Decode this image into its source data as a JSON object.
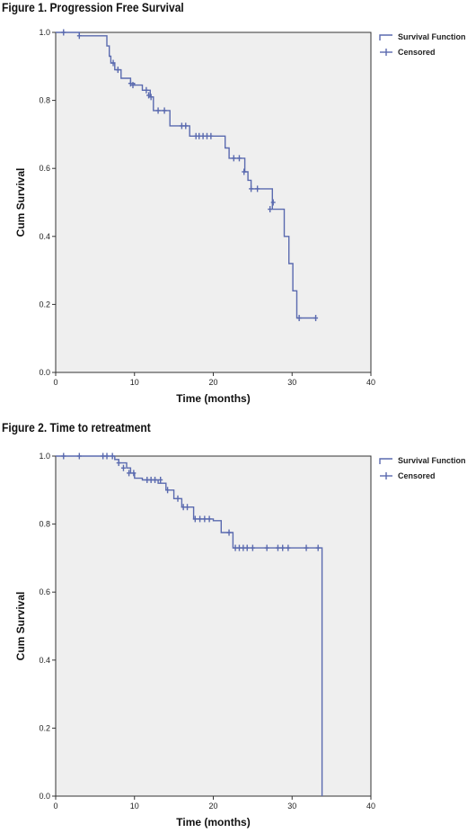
{
  "chart_data": [
    {
      "type": "line",
      "title": "Figure 1. Progression Free Survival",
      "xlabel": "Time (months)",
      "ylabel": "Cum Survival",
      "xlim": [
        0,
        40
      ],
      "ylim": [
        0,
        1.0
      ],
      "x_ticks": [
        "0",
        "10",
        "20",
        "30",
        "40"
      ],
      "y_ticks": [
        "0.0",
        "0.2",
        "0.4",
        "0.6",
        "0.8",
        "1.0"
      ],
      "grid": false,
      "legend_position": "top-right",
      "series_color": "#5a6aaf",
      "plot_background": "#efefef",
      "legend": [
        "Survival Function",
        "Censored"
      ],
      "survival_function": {
        "x": [
          0,
          1,
          3,
          6,
          6.5,
          6.8,
          7,
          7.5,
          8,
          8.3,
          9,
          9.5,
          10,
          11,
          12,
          12.4,
          14,
          14.5,
          15,
          16,
          17,
          21.5,
          22,
          23,
          24,
          24.4,
          24.8,
          27,
          27.5,
          28.3,
          29,
          29.6,
          30.1,
          30.6,
          33
        ],
        "y": [
          1.0,
          1.0,
          0.99,
          0.99,
          0.96,
          0.93,
          0.91,
          0.89,
          0.89,
          0.865,
          0.865,
          0.85,
          0.845,
          0.83,
          0.81,
          0.77,
          0.77,
          0.725,
          0.725,
          0.725,
          0.695,
          0.66,
          0.63,
          0.63,
          0.59,
          0.565,
          0.54,
          0.54,
          0.48,
          0.48,
          0.4,
          0.32,
          0.24,
          0.16,
          0.16
        ]
      },
      "censored": {
        "x": [
          1,
          3,
          7.3,
          7.9,
          9.5,
          9.8,
          11.5,
          11.8,
          12.1,
          13,
          13.8,
          16,
          16.5,
          17.8,
          18.2,
          18.7,
          19.2,
          19.7,
          22.6,
          23.3,
          23.9,
          24.8,
          25.6,
          27.2,
          27.6,
          30.9,
          33
        ],
        "y": [
          1.0,
          0.99,
          0.91,
          0.89,
          0.85,
          0.845,
          0.83,
          0.815,
          0.81,
          0.77,
          0.77,
          0.725,
          0.725,
          0.695,
          0.695,
          0.695,
          0.695,
          0.695,
          0.63,
          0.63,
          0.59,
          0.54,
          0.54,
          0.48,
          0.5,
          0.16,
          0.16
        ]
      }
    },
    {
      "type": "line",
      "title": "Figure 2. Time to retreatment",
      "xlabel": "Time (months)",
      "ylabel": "Cum Survival",
      "xlim": [
        0,
        40
      ],
      "ylim": [
        0,
        1.0
      ],
      "x_ticks": [
        "0",
        "10",
        "20",
        "30",
        "40"
      ],
      "y_ticks": [
        "0.0",
        "0.2",
        "0.4",
        "0.6",
        "0.8",
        "1.0"
      ],
      "grid": false,
      "legend_position": "top-right",
      "series_color": "#5a6aaf",
      "plot_background": "#efefef",
      "legend": [
        "Survival Function",
        "Censored"
      ],
      "survival_function": {
        "x": [
          0,
          7,
          7.5,
          8,
          9,
          9.5,
          10,
          11,
          12,
          13,
          14,
          15,
          16,
          17.5,
          20,
          21,
          22.5,
          23,
          33.8,
          33.8
        ],
        "y": [
          1.0,
          1.0,
          0.99,
          0.98,
          0.965,
          0.95,
          0.935,
          0.93,
          0.93,
          0.92,
          0.9,
          0.875,
          0.85,
          0.815,
          0.81,
          0.775,
          0.73,
          0.73,
          0.73,
          0.0
        ]
      },
      "censored": {
        "x": [
          1,
          3,
          6,
          6.5,
          7.2,
          8,
          8.6,
          9.3,
          9.9,
          11.6,
          12.1,
          12.6,
          13.3,
          14.2,
          15.5,
          16.2,
          16.7,
          17.7,
          18.3,
          18.9,
          19.5,
          22,
          22.8,
          23.3,
          23.8,
          24.3,
          25,
          26.8,
          28.2,
          28.8,
          29.5,
          31.8,
          33.3
        ],
        "y": [
          1.0,
          1.0,
          1.0,
          1.0,
          1.0,
          0.98,
          0.965,
          0.95,
          0.95,
          0.93,
          0.93,
          0.93,
          0.93,
          0.9,
          0.875,
          0.85,
          0.85,
          0.815,
          0.815,
          0.815,
          0.815,
          0.775,
          0.73,
          0.73,
          0.73,
          0.73,
          0.73,
          0.73,
          0.73,
          0.73,
          0.73,
          0.73,
          0.73
        ]
      }
    }
  ]
}
